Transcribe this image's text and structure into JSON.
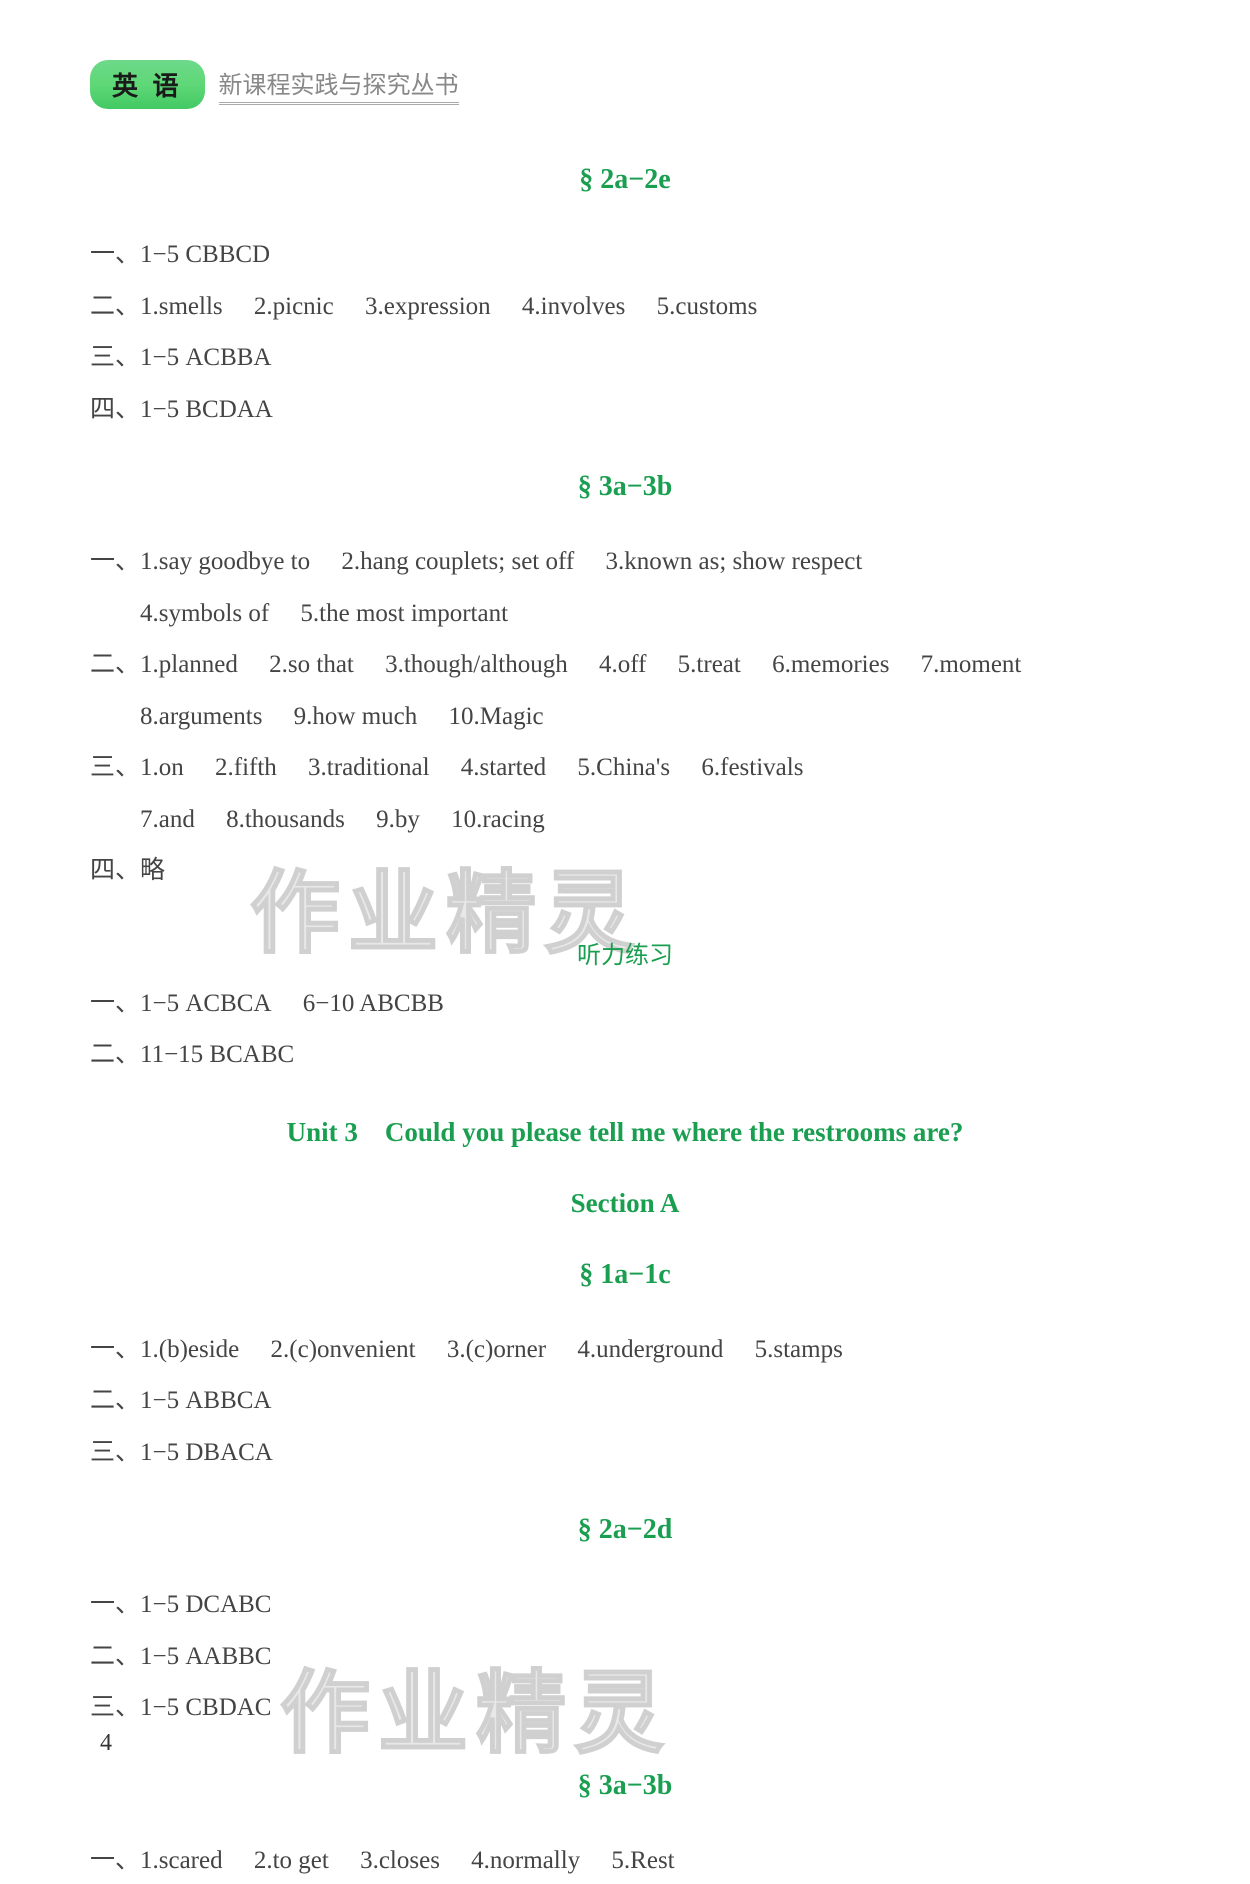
{
  "header": {
    "badge": "英 语",
    "subtitle": "新课程实践与探究丛书"
  },
  "watermark_text": "作业精灵",
  "page_number": "4",
  "sections": [
    {
      "heading": "§ 2a−2e",
      "lines": [
        "一、1−5 CBBCD",
        "二、1.smells  2.picnic  3.expression  4.involves  5.customs",
        "三、1−5 ACBBA",
        "四、1−5 BCDAA"
      ]
    },
    {
      "heading": "§ 3a−3b",
      "lines": [
        "一、1.say goodbye to  2.hang couplets; set off  3.known as; show respect",
        "  4.symbols of  5.the most important",
        "二、1.planned  2.so that  3.though/although  4.off  5.treat  6.memories  7.moment",
        "  8.arguments  9.how much  10.Magic",
        "三、1.on  2.fifth  3.traditional  4.started  5.China's  6.festivals",
        "  7.and  8.thousands  9.by  10.racing",
        "四、略"
      ]
    },
    {
      "listening_label": "听力练习",
      "lines": [
        "一、1−5 ACBCA  6−10 ABCBB",
        "二、11−15 BCABC"
      ]
    },
    {
      "unit_heading": "Unit 3 Could you please tell me where the restrooms are?",
      "section_a": "Section A"
    },
    {
      "heading": "§ 1a−1c",
      "lines": [
        "一、1.(b)eside  2.(c)onvenient  3.(c)orner  4.underground  5.stamps",
        "二、1−5 ABBCA",
        "三、1−5 DBACA"
      ]
    },
    {
      "heading": "§ 2a−2d",
      "lines": [
        "一、1−5 DCABC",
        "二、1−5 AABBC",
        "三、1−5 CBDAC"
      ]
    },
    {
      "heading": "§ 3a−3b",
      "lines": [
        "一、1.scared  2.to get  3.closes  4.normally  5.Rest"
      ]
    }
  ],
  "colors": {
    "heading_green": "#1a9e50",
    "badge_green": "#5fd877",
    "text": "#444444",
    "subtitle_gray": "#888888",
    "watermark": "#e0e0e0",
    "background": "#ffffff"
  }
}
